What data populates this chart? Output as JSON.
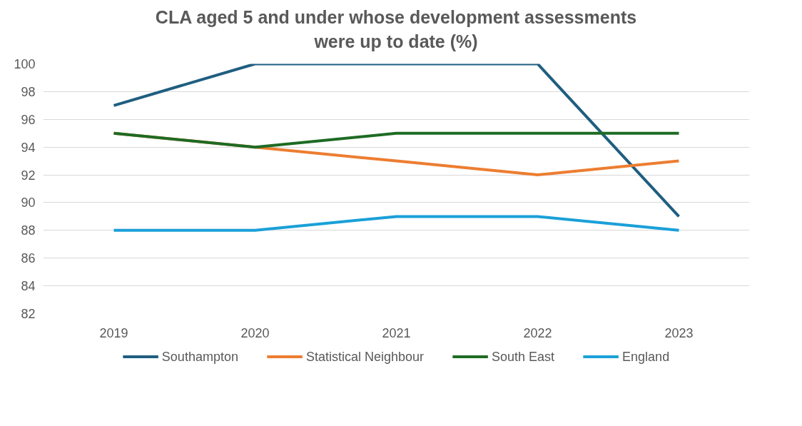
{
  "chart_data": {
    "type": "line",
    "title": "CLA aged 5 and under whose development assessments\nwere up to date  (%)",
    "categories": [
      "2019",
      "2020",
      "2021",
      "2022",
      "2023"
    ],
    "series": [
      {
        "name": "Southampton",
        "color": "#1f5e80",
        "values": [
          97,
          100,
          100,
          100,
          89
        ]
      },
      {
        "name": "Statistical Neighbour",
        "color": "#ed7d31",
        "values": [
          95,
          94,
          93,
          92,
          93
        ]
      },
      {
        "name": "South East",
        "color": "#1e6b24",
        "values": [
          95,
          94,
          95,
          95,
          95
        ]
      },
      {
        "name": "England",
        "color": "#1aa0d8",
        "values": [
          88,
          88,
          89,
          89,
          88
        ]
      }
    ],
    "ylim": [
      82,
      100
    ],
    "yticks": [
      82,
      84,
      86,
      88,
      90,
      92,
      94,
      96,
      98,
      100
    ],
    "grid": "y",
    "legend": "bottom",
    "marker": "none",
    "line_style": "solid"
  }
}
